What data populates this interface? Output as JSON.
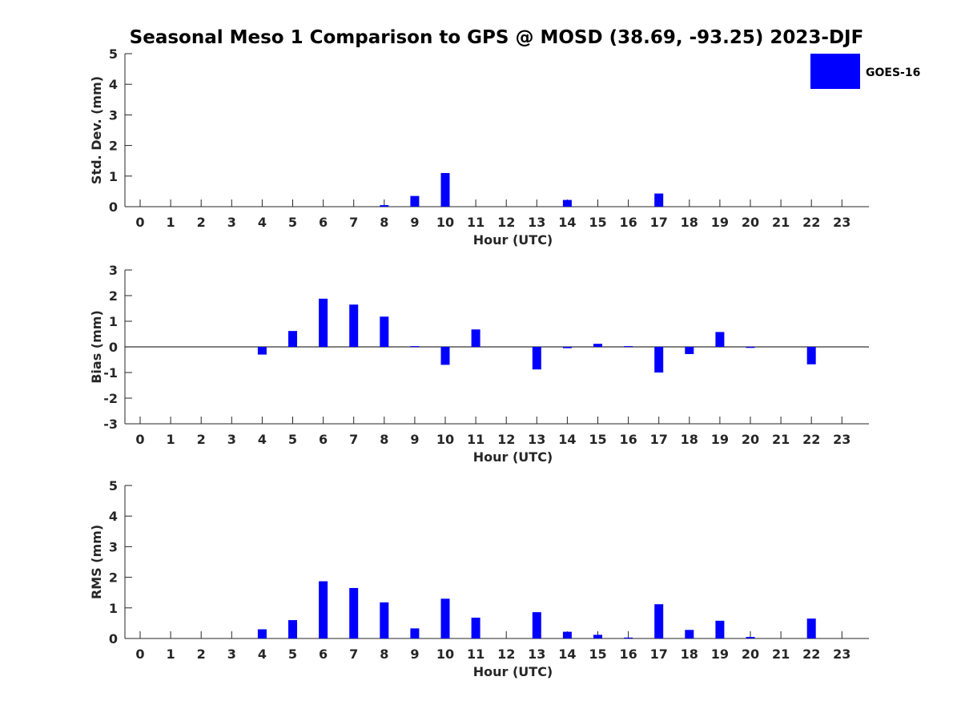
{
  "title": "Seasonal Meso 1 Comparison to GPS @ MOSD (38.69, -93.25) 2023-DJF",
  "legend": {
    "label": "GOES-16",
    "color": "#0000ff",
    "placement": "top-right"
  },
  "chart_data": [
    {
      "type": "bar",
      "ylabel": "Std. Dev. (mm)",
      "xlabel": "Hour (UTC)",
      "ylim": [
        0,
        5
      ],
      "yticks": [
        0,
        1,
        2,
        3,
        4,
        5
      ],
      "categories": [
        "0",
        "1",
        "2",
        "3",
        "4",
        "5",
        "6",
        "7",
        "8",
        "9",
        "10",
        "11",
        "12",
        "13",
        "14",
        "15",
        "16",
        "17",
        "18",
        "19",
        "20",
        "21",
        "22",
        "23"
      ],
      "series": [
        {
          "name": "GOES-16",
          "color": "#0000ff",
          "values": [
            0,
            0,
            0,
            0,
            0,
            0,
            0,
            0,
            0.05,
            0.35,
            1.1,
            0,
            0,
            0,
            0.22,
            0,
            0,
            0.43,
            0,
            0,
            0,
            0,
            0,
            0
          ]
        }
      ],
      "grid": false
    },
    {
      "type": "bar",
      "ylabel": "Bias (mm)",
      "xlabel": "Hour (UTC)",
      "ylim": [
        -3,
        3
      ],
      "yticks": [
        -3,
        -2,
        -1,
        0,
        1,
        2,
        3
      ],
      "categories": [
        "0",
        "1",
        "2",
        "3",
        "4",
        "5",
        "6",
        "7",
        "8",
        "9",
        "10",
        "11",
        "12",
        "13",
        "14",
        "15",
        "16",
        "17",
        "18",
        "19",
        "20",
        "21",
        "22",
        "23"
      ],
      "series": [
        {
          "name": "GOES-16",
          "color": "#0000ff",
          "values": [
            0,
            0,
            0,
            0,
            -0.3,
            0.62,
            1.88,
            1.65,
            1.18,
            0.03,
            -0.7,
            0.68,
            0,
            -0.88,
            -0.05,
            0.12,
            0.03,
            -1.0,
            -0.28,
            0.58,
            -0.04,
            0,
            -0.68,
            0
          ]
        }
      ],
      "zero_line": true,
      "grid": false
    },
    {
      "type": "bar",
      "ylabel": "RMS (mm)",
      "xlabel": "Hour (UTC)",
      "ylim": [
        0,
        5
      ],
      "yticks": [
        0,
        1,
        2,
        3,
        4,
        5
      ],
      "categories": [
        "0",
        "1",
        "2",
        "3",
        "4",
        "5",
        "6",
        "7",
        "8",
        "9",
        "10",
        "11",
        "12",
        "13",
        "14",
        "15",
        "16",
        "17",
        "18",
        "19",
        "20",
        "21",
        "22",
        "23"
      ],
      "series": [
        {
          "name": "GOES-16",
          "color": "#0000ff",
          "values": [
            0,
            0,
            0,
            0,
            0.3,
            0.6,
            1.87,
            1.65,
            1.18,
            0.33,
            1.3,
            0.68,
            0,
            0.86,
            0.22,
            0.12,
            0.03,
            1.12,
            0.28,
            0.58,
            0.05,
            0,
            0.65,
            0
          ]
        }
      ],
      "grid": false
    }
  ]
}
